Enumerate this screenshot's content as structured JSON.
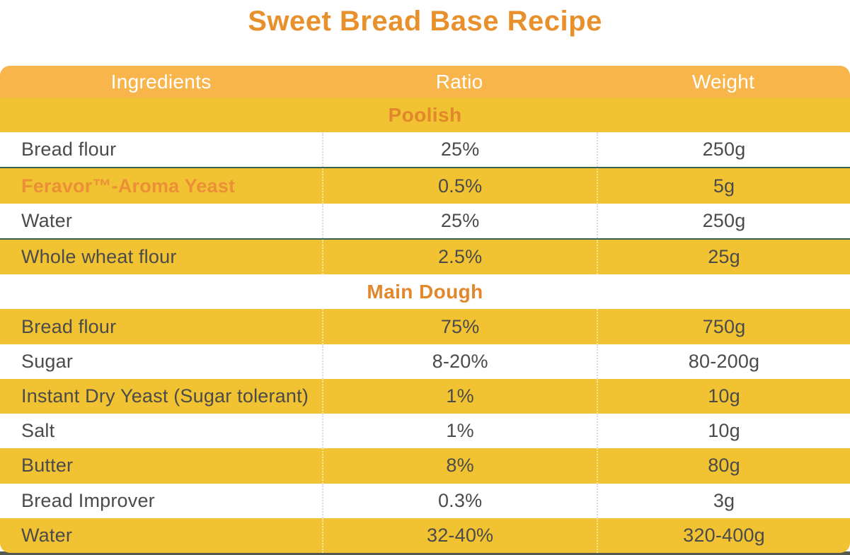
{
  "page": {
    "title": "Sweet Bread Base Recipe"
  },
  "colors": {
    "title": "#E8912C",
    "header_bg": "#F7B54C",
    "row_yellow": "#F1C232",
    "section": "#E2872B",
    "highlight": "#EC9038",
    "text": "#4B4B4B",
    "strip": "#55584C"
  },
  "table": {
    "columns": [
      "Ingredients",
      "Ratio",
      "Weight"
    ],
    "rows": [
      {
        "type": "section",
        "label": "Poolish"
      },
      {
        "type": "data",
        "ingredient": "Bread flour",
        "ratio": "25%",
        "weight": "250g",
        "divider_after": true
      },
      {
        "type": "data",
        "ingredient": "Feravor™-Aroma Yeast",
        "ratio": "0.5%",
        "weight": "5g",
        "highlight": true
      },
      {
        "type": "data",
        "ingredient": "Water",
        "ratio": "25%",
        "weight": "250g",
        "divider_after": true
      },
      {
        "type": "data",
        "ingredient": "Whole wheat flour",
        "ratio": "2.5%",
        "weight": "25g"
      },
      {
        "type": "section",
        "label": "Main Dough"
      },
      {
        "type": "data",
        "ingredient": "Bread flour",
        "ratio": "75%",
        "weight": "750g"
      },
      {
        "type": "data",
        "ingredient": "Sugar",
        "ratio": "8-20%",
        "weight": "80-200g"
      },
      {
        "type": "data",
        "ingredient": "Instant Dry Yeast (Sugar tolerant)",
        "ratio": "1%",
        "weight": "10g"
      },
      {
        "type": "data",
        "ingredient": "Salt",
        "ratio": "1%",
        "weight": "10g"
      },
      {
        "type": "data",
        "ingredient": "Butter",
        "ratio": "8%",
        "weight": "80g"
      },
      {
        "type": "data",
        "ingredient": "Bread Improver",
        "ratio": "0.3%",
        "weight": "3g"
      },
      {
        "type": "data",
        "ingredient": "Water",
        "ratio": "32-40%",
        "weight": "320-400g"
      }
    ]
  }
}
